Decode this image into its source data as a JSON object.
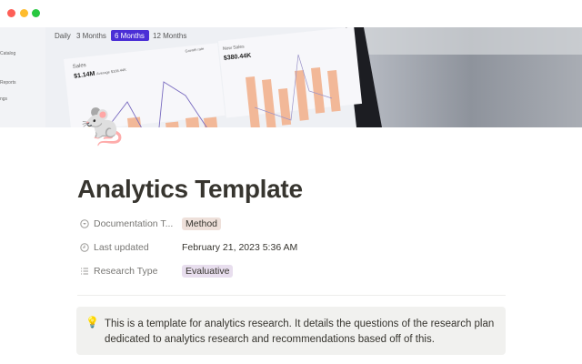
{
  "window": {
    "controls": [
      "close",
      "minimize",
      "maximize"
    ],
    "colors": {
      "close": "#fe5f57",
      "minimize": "#febc2e",
      "maximize": "#28c840"
    }
  },
  "cover": {
    "tabs": [
      "Daily",
      "3 Months",
      "6 Months",
      "12 Months"
    ],
    "active_tab": "6 Months",
    "sidebar_items": [
      "Catalog",
      "Reports",
      "ngs"
    ],
    "sales_title": "Sales",
    "sales_value": "$1.14M",
    "sales_average": "Average $108.44K",
    "legend": "Growth rate",
    "new_sales_title": "New Sales",
    "new_sales_value": "$380.44K",
    "accent": "#4b2fd6",
    "bar_color": "#f2b898"
  },
  "page": {
    "icon": "🐁",
    "title": "Analytics Template",
    "properties": [
      {
        "icon": "select-icon",
        "label": "Documentation T...",
        "value": "Method",
        "tag_color": "#eee0da"
      },
      {
        "icon": "clock-icon",
        "label": "Last updated",
        "value": "February 21, 2023 5:36 AM"
      },
      {
        "icon": "list-icon",
        "label": "Research Type",
        "value": "Evaluative",
        "tag_color": "#e8deee"
      }
    ],
    "callout": {
      "icon": "💡",
      "text": "This is a template for analytics research. It details the questions of the research plan dedicated to analytics research and recommendations based off of this."
    }
  }
}
